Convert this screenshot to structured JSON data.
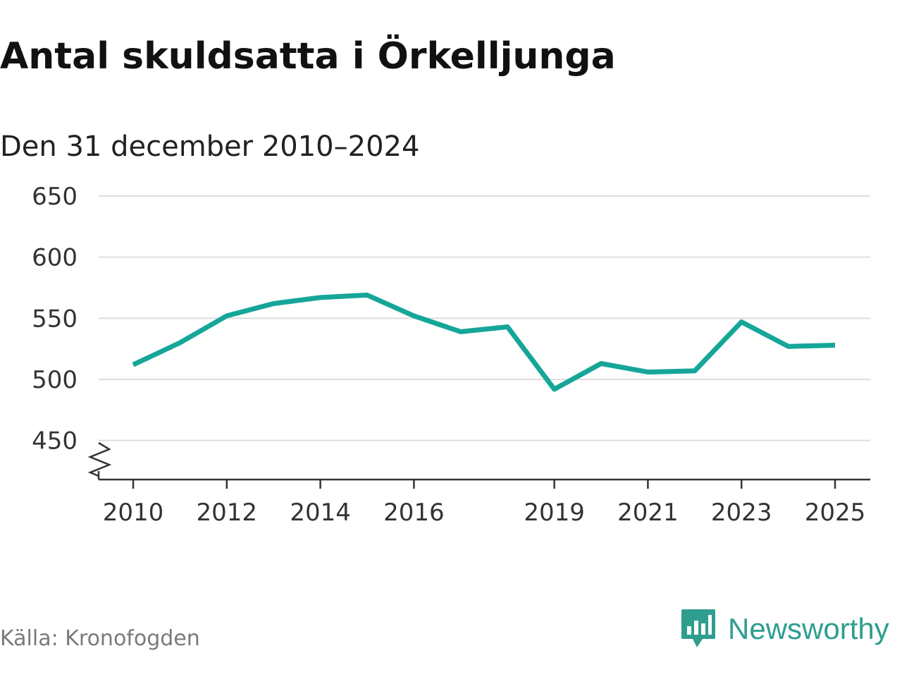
{
  "title": "Antal skuldsatta i Örkelljunga",
  "subtitle": "Den 31 december 2010–2024",
  "source": "Källa: Kronofogden",
  "brand": {
    "name": "Newsworthy",
    "icon": "newsworthy-logo-icon",
    "color": "#2e9e8f"
  },
  "chart_data": {
    "type": "line",
    "title": "Antal skuldsatta i Örkelljunga",
    "subtitle": "Den 31 december 2010–2024",
    "x": [
      2010,
      2011,
      2012,
      2013,
      2014,
      2015,
      2016,
      2017,
      2018,
      2019,
      2020,
      2021,
      2022,
      2023,
      2024,
      2025
    ],
    "values": [
      512,
      530,
      552,
      562,
      567,
      569,
      552,
      539,
      543,
      492,
      513,
      506,
      507,
      547,
      527,
      528
    ],
    "line_color": "#16a699",
    "xlim": [
      2010,
      2025
    ],
    "ylim": [
      420,
      650
    ],
    "yticks": [
      450,
      500,
      550,
      600,
      650
    ],
    "xticks": [
      2010,
      2012,
      2014,
      2016,
      2019,
      2021,
      2023,
      2025
    ],
    "axis_break": true,
    "grid": "horizontal",
    "xlabel": "",
    "ylabel": ""
  }
}
